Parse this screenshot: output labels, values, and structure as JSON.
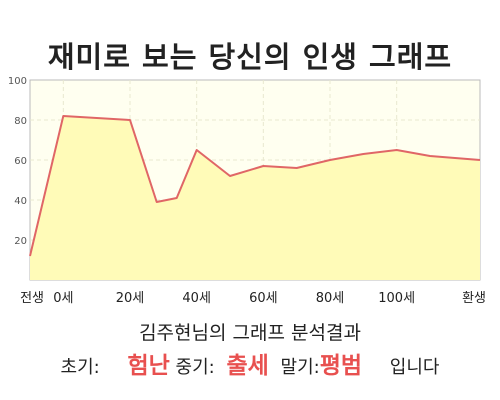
{
  "chart_data": {
    "type": "area",
    "title": "재미로 보는 당신의 인생 그래프",
    "x": [
      -10,
      0,
      20,
      28,
      34,
      40,
      50,
      60,
      70,
      80,
      90,
      100,
      110,
      125
    ],
    "y": [
      12,
      82,
      80,
      39,
      41,
      65,
      52,
      57,
      56,
      60,
      63,
      65,
      62,
      60
    ],
    "x_ticks": [
      {
        "x": -10,
        "label": "전생"
      },
      {
        "x": 0,
        "label": "0세"
      },
      {
        "x": 20,
        "label": "20세"
      },
      {
        "x": 40,
        "label": "40세"
      },
      {
        "x": 60,
        "label": "60세"
      },
      {
        "x": 80,
        "label": "80세"
      },
      {
        "x": 100,
        "label": "100세"
      },
      {
        "x": 125,
        "label": "환생"
      }
    ],
    "y_ticks": [
      20,
      40,
      60,
      80,
      100
    ],
    "ylim": [
      0,
      100
    ],
    "xlim": [
      -10,
      125
    ],
    "grid": true,
    "colors": {
      "line": "#e06666",
      "fill": "#fffbb8",
      "plot_bg": "#fffff0",
      "grid": "#e8e8d0"
    }
  },
  "summary": "김주현님의 그래프 분석결과",
  "result": {
    "early_label": "초기:",
    "early_value": "험난",
    "mid_label": "중기:",
    "mid_value": "출세",
    "late_label": "말기:",
    "late_value": "평범",
    "ending": "입니다"
  }
}
